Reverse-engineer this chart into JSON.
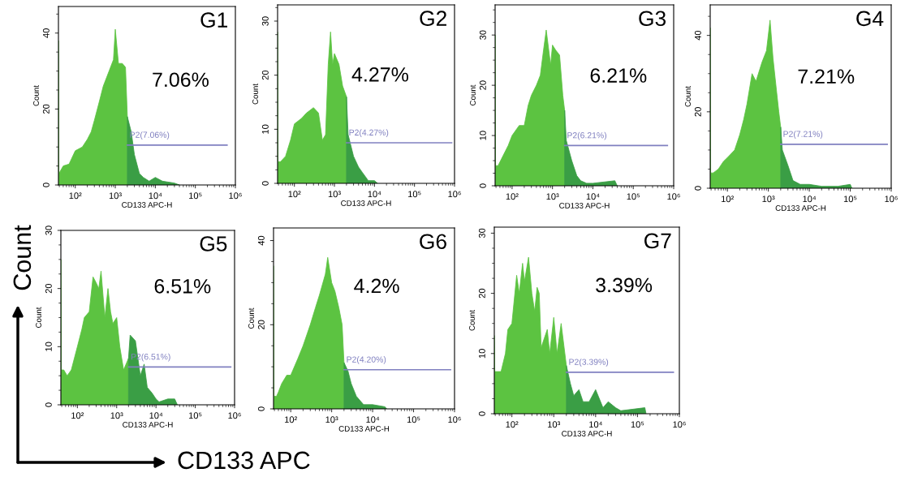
{
  "chart_data": [
    {
      "type": "area",
      "title": "G1",
      "xlabel": "CD133 APC-H",
      "ylabel": "Count",
      "log": "x",
      "xlim": [
        38,
        1000000
      ],
      "xticks": [
        {
          "value": 100,
          "label": "10²"
        },
        {
          "value": 1000,
          "label": "10³"
        },
        {
          "value": 10000,
          "label": "10⁴"
        },
        {
          "value": 100000,
          "label": "10⁵"
        },
        {
          "value": 1000000,
          "label": "10⁶"
        }
      ],
      "ylim": [
        0,
        47
      ],
      "yticks": [
        0,
        20,
        40
      ],
      "series": [
        {
          "color": "#5cc341",
          "x": [
            38,
            39,
            50,
            70,
            100,
            150,
            200,
            250,
            300,
            400,
            500,
            700,
            900,
            1000,
            1200,
            1500,
            1800,
            2000
          ],
          "values": [
            38,
            3,
            5,
            5.5,
            9,
            10,
            12,
            14,
            17,
            22,
            26,
            30,
            33,
            41,
            32,
            32,
            31,
            18
          ]
        },
        {
          "color": "#3a9e45",
          "x": [
            2000,
            2500,
            3000,
            4000,
            5000,
            7000,
            10000,
            15000,
            30000,
            40000
          ],
          "values": [
            18,
            14,
            8,
            3,
            2,
            1,
            2,
            1,
            0.5,
            0
          ]
        },
        {
          "type": "line",
          "color": "#8080c0",
          "x": [
            2000,
            620000
          ],
          "values": [
            10.5,
            10.5
          ]
        }
      ],
      "annotations": [
        "7.06%",
        "P2(7.06%)"
      ]
    },
    {
      "type": "area",
      "title": "G2",
      "xlabel": "CD133 APC-H",
      "ylabel": "Count",
      "log": "x",
      "xlim": [
        38,
        1000000
      ],
      "xticks": [
        {
          "value": 100,
          "label": "10²"
        },
        {
          "value": 1000,
          "label": "10³"
        },
        {
          "value": 10000,
          "label": "10⁴"
        },
        {
          "value": 100000,
          "label": "10⁵"
        },
        {
          "value": 1000000,
          "label": "10⁶"
        }
      ],
      "ylim": [
        0,
        33
      ],
      "yticks": [
        0,
        10,
        20,
        30
      ],
      "series": [
        {
          "color": "#5cc341",
          "x": [
            38,
            39,
            45,
            60,
            80,
            100,
            150,
            200,
            300,
            400,
            500,
            600,
            700,
            800,
            900,
            1000,
            1300,
            1600,
            2000
          ],
          "values": [
            28,
            4,
            4,
            5,
            8,
            11,
            12,
            13,
            14,
            13,
            8,
            9,
            22,
            28,
            22,
            24,
            22,
            18,
            16
          ]
        },
        {
          "color": "#3a9e45",
          "x": [
            2000,
            2200,
            3000,
            4000,
            5000,
            7000,
            10000,
            12000
          ],
          "values": [
            16,
            9,
            5,
            3,
            2,
            0.5,
            0.5,
            0
          ]
        },
        {
          "type": "line",
          "color": "#8080c0",
          "x": [
            2000,
            850000
          ],
          "values": [
            7.5,
            7.5
          ]
        }
      ],
      "annotations": [
        "4.27%",
        "P2(4.27%)"
      ]
    },
    {
      "type": "area",
      "title": "G3",
      "xlabel": "CD133 APC-H",
      "ylabel": "Count",
      "log": "x",
      "xlim": [
        38,
        1000000
      ],
      "xticks": [
        {
          "value": 100,
          "label": "10²"
        },
        {
          "value": 1000,
          "label": "10³"
        },
        {
          "value": 10000,
          "label": "10⁴"
        },
        {
          "value": 100000,
          "label": "10⁵"
        },
        {
          "value": 1000000,
          "label": "10⁶"
        }
      ],
      "ylim": [
        0,
        36
      ],
      "yticks": [
        0,
        10,
        20,
        30
      ],
      "series": [
        {
          "color": "#5cc341",
          "x": [
            38,
            39,
            45,
            60,
            80,
            100,
            150,
            200,
            250,
            300,
            400,
            500,
            600,
            700,
            900,
            1000,
            1200,
            1500,
            1800,
            2000
          ],
          "values": [
            30,
            4,
            4,
            6,
            8,
            10,
            12,
            12,
            16,
            18,
            20,
            22,
            27,
            31,
            24,
            28,
            27,
            26,
            18,
            15
          ]
        },
        {
          "color": "#3a9e45",
          "x": [
            2000,
            2200,
            3000,
            4000,
            5000,
            7000,
            10000,
            35000,
            40000
          ],
          "values": [
            15,
            9,
            5,
            2,
            1,
            0.5,
            0.5,
            1,
            0
          ]
        },
        {
          "type": "line",
          "color": "#8080c0",
          "x": [
            2000,
            700000
          ],
          "values": [
            8,
            8
          ]
        }
      ],
      "annotations": [
        "6.21%",
        "P2(6.21%)"
      ]
    },
    {
      "type": "area",
      "title": "G4",
      "xlabel": "CD133 APC-H",
      "ylabel": "Count",
      "log": "x",
      "xlim": [
        38,
        1000000
      ],
      "xticks": [
        {
          "value": 100,
          "label": "10²"
        },
        {
          "value": 1000,
          "label": "10³"
        },
        {
          "value": 10000,
          "label": "10⁴"
        },
        {
          "value": 100000,
          "label": "10⁵"
        },
        {
          "value": 1000000,
          "label": "10⁶"
        }
      ],
      "ylim": [
        0,
        48
      ],
      "yticks": [
        0,
        20,
        40
      ],
      "series": [
        {
          "color": "#5cc341",
          "x": [
            38,
            39,
            45,
            60,
            80,
            100,
            150,
            200,
            250,
            300,
            400,
            500,
            700,
            900,
            1100,
            1300,
            1600,
            1800,
            2000
          ],
          "values": [
            42,
            4,
            4,
            5,
            7,
            8,
            10,
            14,
            18,
            22,
            30,
            28,
            33,
            36,
            44,
            34,
            25,
            20,
            16
          ]
        },
        {
          "color": "#3a9e45",
          "x": [
            2000,
            2200,
            3000,
            4000,
            6000,
            10000,
            20000,
            50000,
            100000,
            110000
          ],
          "values": [
            16,
            10,
            6,
            2,
            1,
            1,
            0.5,
            0.5,
            1,
            0
          ]
        },
        {
          "type": "line",
          "color": "#8080c0",
          "x": [
            2000,
            800000
          ],
          "values": [
            11.5,
            11.5
          ]
        }
      ],
      "annotations": [
        "7.21%",
        "P2(7.21%)"
      ]
    },
    {
      "type": "area",
      "title": "G5",
      "xlabel": "CD133 APC-H",
      "ylabel": "Count",
      "log": "x",
      "xlim": [
        38,
        1000000
      ],
      "xticks": [
        {
          "value": 100,
          "label": "10²"
        },
        {
          "value": 1000,
          "label": "10³"
        },
        {
          "value": 10000,
          "label": "10⁴"
        },
        {
          "value": 100000,
          "label": "10⁵"
        },
        {
          "value": 1000000,
          "label": "10⁶"
        }
      ],
      "ylim": [
        0,
        30
      ],
      "yticks": [
        0,
        10,
        20,
        30
      ],
      "series": [
        {
          "color": "#5cc341",
          "x": [
            38,
            39,
            45,
            55,
            70,
            100,
            130,
            150,
            200,
            250,
            300,
            350,
            400,
            500,
            600,
            700,
            800,
            1000,
            1200,
            1500,
            2000
          ],
          "values": [
            25,
            6,
            6,
            5,
            6,
            10,
            13,
            15,
            16,
            22,
            21,
            20,
            23,
            15,
            20,
            16,
            14,
            15,
            10,
            6,
            8
          ]
        },
        {
          "color": "#3a9e45",
          "x": [
            2000,
            2200,
            3000,
            4000,
            5000,
            6000,
            8000,
            10000,
            12000,
            20000,
            30000,
            35000
          ],
          "values": [
            8,
            12,
            11,
            5,
            7,
            3,
            2,
            1,
            0.5,
            1,
            1,
            0
          ]
        },
        {
          "type": "line",
          "color": "#8080c0",
          "x": [
            2000,
            800000
          ],
          "values": [
            6.5,
            6.5
          ]
        }
      ],
      "annotations": [
        "6.51%",
        "P2(6.51%)"
      ]
    },
    {
      "type": "area",
      "title": "G6",
      "xlabel": "CD133 APC-H",
      "ylabel": "Count",
      "log": "x",
      "xlim": [
        38,
        1000000
      ],
      "xticks": [
        {
          "value": 100,
          "label": "10²"
        },
        {
          "value": 1000,
          "label": "10³"
        },
        {
          "value": 10000,
          "label": "10⁴"
        },
        {
          "value": 100000,
          "label": "10⁵"
        },
        {
          "value": 1000000,
          "label": "10⁶"
        }
      ],
      "ylim": [
        0,
        43
      ],
      "yticks": [
        0,
        20,
        40
      ],
      "series": [
        {
          "color": "#5cc341",
          "x": [
            38,
            39,
            45,
            50,
            60,
            80,
            100,
            150,
            200,
            300,
            400,
            500,
            700,
            800,
            1000,
            1200,
            1500,
            1800,
            2000
          ],
          "values": [
            34,
            3,
            3,
            4,
            6,
            8,
            8,
            12,
            15,
            20,
            24,
            27,
            32,
            36,
            30,
            28,
            24,
            20,
            11
          ]
        },
        {
          "color": "#3a9e45",
          "x": [
            2000,
            2500,
            3000,
            4000,
            6000,
            10000,
            20000,
            22000
          ],
          "values": [
            11,
            9,
            6,
            3,
            1,
            1,
            0.5,
            0
          ]
        },
        {
          "type": "line",
          "color": "#8080c0",
          "x": [
            2000,
            800000
          ],
          "values": [
            9.3,
            9.3
          ]
        }
      ],
      "annotations": [
        "4.2%",
        "P2(4.20%)"
      ]
    },
    {
      "type": "area",
      "title": "G7",
      "xlabel": "CD133 APC-H",
      "ylabel": "Count",
      "log": "x",
      "xlim": [
        38,
        1000000
      ],
      "xticks": [
        {
          "value": 100,
          "label": "10²"
        },
        {
          "value": 1000,
          "label": "10³"
        },
        {
          "value": 10000,
          "label": "10⁴"
        },
        {
          "value": 100000,
          "label": "10⁵"
        },
        {
          "value": 1000000,
          "label": "10⁶"
        }
      ],
      "ylim": [
        0,
        31
      ],
      "yticks": [
        0,
        10,
        20,
        30
      ],
      "series": [
        {
          "color": "#5cc341",
          "x": [
            38,
            39,
            45,
            55,
            70,
            80,
            100,
            130,
            150,
            180,
            200,
            250,
            300,
            350,
            400,
            450,
            500,
            700,
            800,
            1000,
            1200,
            1500,
            2000
          ],
          "values": [
            13,
            7,
            7,
            7,
            10,
            14,
            15,
            23,
            20,
            25,
            22,
            26,
            20,
            17,
            21,
            20,
            11,
            14,
            10,
            16,
            10,
            15,
            8
          ]
        },
        {
          "color": "#3a9e45",
          "x": [
            2000,
            2500,
            3000,
            4000,
            5000,
            7000,
            10000,
            15000,
            20000,
            30000,
            40000,
            150000,
            160000
          ],
          "values": [
            8,
            5,
            3,
            4,
            2,
            2,
            4,
            1,
            2,
            1,
            0.5,
            1,
            0
          ]
        },
        {
          "type": "line",
          "color": "#8080c0",
          "x": [
            2000,
            720000
          ],
          "values": [
            6.9,
            6.9
          ]
        }
      ],
      "annotations": [
        "3.39%",
        "P2(3.39%)"
      ]
    },
    {
      "type": "other",
      "annotations": [
        "Count",
        "CD133 APC"
      ]
    }
  ]
}
